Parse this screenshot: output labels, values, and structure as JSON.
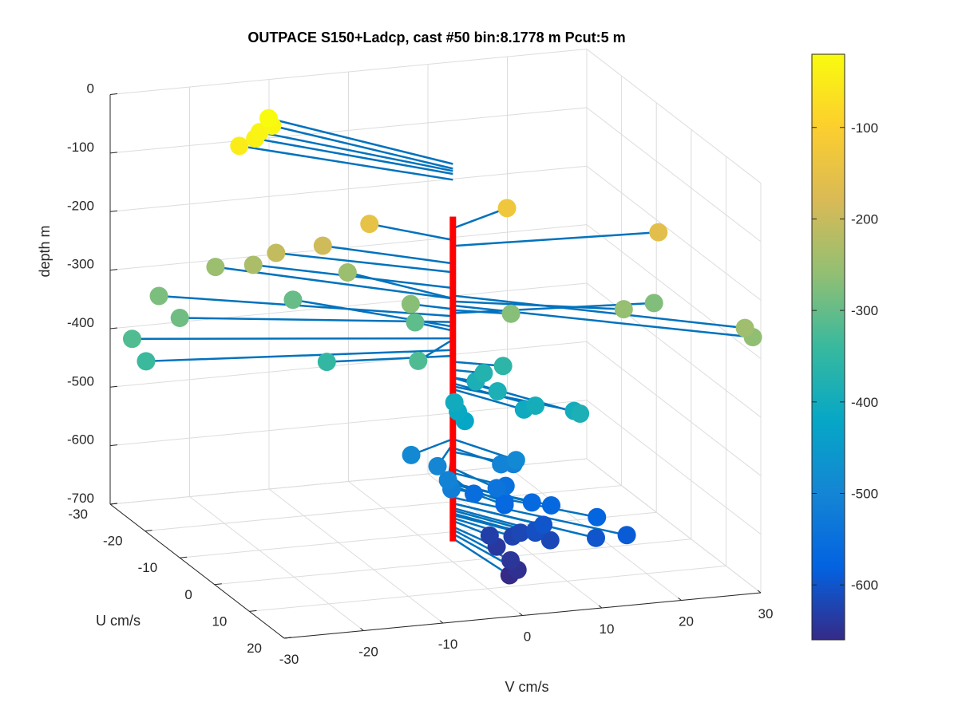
{
  "chart_data": {
    "type": "scatter",
    "title": "OUTPACE S150+Ladcp, cast #50 bin:8.1778 m  Pcut:5 m",
    "xlabel": "V cm/s",
    "ylabel": "U cm/s",
    "zlabel": "depth m",
    "x_ticks": [
      "-30",
      "-20",
      "-10",
      "0",
      "10",
      "20",
      "30"
    ],
    "y_ticks": [
      "-30",
      "-20",
      "-10",
      "0",
      "10",
      "20"
    ],
    "z_ticks": [
      "0",
      "-100",
      "-200",
      "-300",
      "-400",
      "-500",
      "-600",
      "-700"
    ],
    "colorbar_ticks": [
      "-100",
      "-200",
      "-300",
      "-400",
      "-500",
      "-600"
    ],
    "xlim": [
      -30,
      30
    ],
    "ylim": [
      -30,
      20
    ],
    "zlim": [
      -700,
      0
    ],
    "colorbar_range": [
      -660,
      -20
    ],
    "colormap": "parula",
    "grid": true,
    "colors": {
      "stick": "#0072BD",
      "axis_line": "#ff0000",
      "grid": "#dcdcdc",
      "box": "#262626"
    },
    "points_v_u_depth": [
      [
        -14,
        -21,
        -20
      ],
      [
        -14,
        -20,
        -28
      ],
      [
        -16,
        -19,
        -32
      ],
      [
        -17,
        -18,
        -37
      ],
      [
        -19,
        -18,
        -47
      ],
      [
        -7,
        -8,
        -150
      ],
      [
        -12,
        -10,
        -190
      ],
      [
        -17,
        -12,
        -205
      ],
      [
        -19,
        -14,
        -232
      ],
      [
        -8,
        -12,
        -250
      ],
      [
        9,
        -5,
        -130
      ],
      [
        25,
        2,
        -160
      ],
      [
        28,
        20,
        -245
      ],
      [
        29,
        20,
        -262
      ],
      [
        18,
        8,
        -255
      ],
      [
        24,
        3,
        -275
      ],
      [
        6,
        3,
        -270
      ],
      [
        -4,
        -3,
        -268
      ],
      [
        -22,
        -18,
        -250
      ],
      [
        -14,
        -14,
        -298
      ],
      [
        -30,
        -16,
        -280
      ],
      [
        -30,
        -10,
        -290
      ],
      [
        -36,
        -10,
        -318
      ],
      [
        -36,
        -6,
        -338
      ],
      [
        -15,
        -2,
        -348
      ],
      [
        -3,
        -4,
        -305
      ],
      [
        -7,
        6,
        -320
      ],
      [
        5,
        3,
        -358
      ],
      [
        3,
        2,
        -372
      ],
      [
        2,
        2,
        -385
      ],
      [
        3,
        6,
        -385
      ],
      [
        6,
        10,
        -395
      ],
      [
        9,
        16,
        -385
      ],
      [
        -2,
        5,
        -402
      ],
      [
        -2,
        6,
        -413
      ],
      [
        5,
        9,
        -405
      ],
      [
        10,
        12,
        -400
      ],
      [
        -2,
        8,
        -420
      ],
      [
        -7,
        4,
        -490
      ],
      [
        -5,
        7,
        -498
      ],
      [
        -5,
        10,
        -508
      ],
      [
        -5,
        11,
        -519
      ],
      [
        4,
        9,
        -490
      ],
      [
        3,
        7,
        -505
      ],
      [
        5,
        6,
        -512
      ],
      [
        2,
        8,
        -540
      ],
      [
        4,
        6,
        -548
      ],
      [
        0,
        6,
        -556
      ],
      [
        3,
        8,
        -565
      ],
      [
        3,
        8,
        -570
      ],
      [
        6,
        9,
        -565
      ],
      [
        8,
        10,
        -568
      ],
      [
        12,
        14,
        -575
      ],
      [
        14,
        18,
        -590
      ],
      [
        11,
        16,
        -600
      ],
      [
        7,
        10,
        -600
      ],
      [
        6,
        10,
        -608
      ],
      [
        6,
        10,
        -612
      ],
      [
        7,
        12,
        -617
      ],
      [
        5,
        8,
        -620
      ],
      [
        4,
        8,
        -625
      ],
      [
        2,
        6,
        -630
      ],
      [
        2,
        8,
        -640
      ],
      [
        2,
        12,
        -645
      ],
      [
        2,
        14,
        -652
      ],
      [
        1,
        14,
        -660
      ]
    ]
  }
}
